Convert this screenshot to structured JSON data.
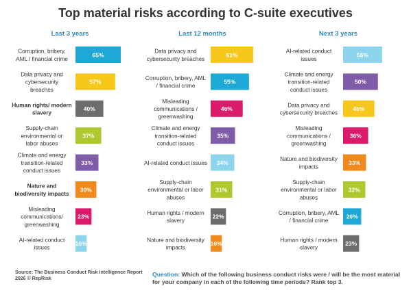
{
  "title": "Top material risks according to C-suite executives",
  "source": "Source: The Business Conduct Risk Intelligence Report 2026 © RepRisk",
  "question_label": "Question:",
  "question_text": "Which of the following business conduct risks were / will be the most material for your company in each of the following time periods? Rank top 3.",
  "colors": {
    "corruption": "#1da8d6",
    "data_privacy": "#f7c81b",
    "human_rights": "#6d6d6d",
    "supply_chain": "#b1c72f",
    "climate": "#7e5ca8",
    "nature": "#f08a1c",
    "misleading": "#db1a6c",
    "ai": "#8dd5ec",
    "heading": "#2b8ac4"
  },
  "chart_data": [
    {
      "type": "bar",
      "orientation": "horizontal",
      "title": "Last 3 years",
      "unit": "%",
      "xlim": [
        0,
        65
      ],
      "categories": [
        "Corruption, bribery, AML / financial crime",
        "Data privacy and cybersecurity breaches",
        "Human rights/ modern slavery",
        "Supply-chain environmental or labor abuses",
        "Climate and energy transition-related conduct issues",
        "Nature and biodiversity impacts",
        "Misleading communications/ greenwashing",
        "AI-related conduct issues"
      ],
      "label_lines": [
        [
          "Corruption, bribery,",
          "AML / financial crime"
        ],
        [
          "Data privacy and",
          "cybersecurity",
          "breaches"
        ],
        [
          "Human rights/ modern",
          "slavery"
        ],
        [
          "Supply-chain",
          "environmental or",
          "labor abuses"
        ],
        [
          "Climate and energy",
          "transition-related",
          "conduct issues"
        ],
        [
          "Nature and",
          "biodiversity impacts"
        ],
        [
          "Misleading",
          "communications/",
          "greenwashing"
        ],
        [
          "AI-related conduct",
          "issues"
        ]
      ],
      "bold_labels": [
        false,
        false,
        true,
        false,
        false,
        true,
        false,
        false
      ],
      "values": [
        65,
        57,
        40,
        37,
        33,
        30,
        23,
        16
      ],
      "color_keys": [
        "corruption",
        "data_privacy",
        "human_rights",
        "supply_chain",
        "climate",
        "nature",
        "misleading",
        "ai"
      ]
    },
    {
      "type": "bar",
      "orientation": "horizontal",
      "title": "Last 12 months",
      "unit": "%",
      "xlim": [
        0,
        65
      ],
      "categories": [
        "Data privacy and cybersecurity breaches",
        "Corruption, bribery, AML / financial crime",
        "Misleading communications / greenwashing",
        "Climate and energy transition-related conduct issues",
        "AI-related conduct issues",
        "Supply-chain environmental or labor abuses",
        "Human rights / modern slavery",
        "Nature and biodiversity impacts"
      ],
      "label_lines": [
        [
          "Data privacy and",
          "cybersecurity breaches"
        ],
        [
          "Corruption, bribery, AML",
          "/ financial crime"
        ],
        [
          "Misleading",
          "communications /",
          "greenwashing"
        ],
        [
          "Climate and energy",
          "transition-related",
          "conduct issues"
        ],
        [
          "AI-related conduct issues"
        ],
        [
          "Supply-chain",
          "environmental or labor",
          "abuses"
        ],
        [
          "Human rights / modern",
          "slavery"
        ],
        [
          "Nature and biodiversity",
          "impacts"
        ]
      ],
      "bold_labels": [
        false,
        false,
        false,
        false,
        false,
        false,
        false,
        false
      ],
      "values": [
        61,
        55,
        46,
        35,
        34,
        31,
        22,
        16
      ],
      "color_keys": [
        "data_privacy",
        "corruption",
        "misleading",
        "climate",
        "ai",
        "supply_chain",
        "human_rights",
        "nature"
      ]
    },
    {
      "type": "bar",
      "orientation": "horizontal",
      "title": "Next 3 years",
      "unit": "%",
      "xlim": [
        0,
        65
      ],
      "categories": [
        "AI-related conduct issues",
        "Climate and energy transition-related conduct issues",
        "Data privacy and cybersecurity breaches",
        "Misleading communications / greenwashing",
        "Nature and biodiversity impacts",
        "Supply-chain environmental or labor abuses",
        "Corruption, bribery, AML / financial crime",
        "Human rights / modern slavery"
      ],
      "label_lines": [
        [
          "AI-related conduct",
          "issues"
        ],
        [
          "Climate and energy",
          "transition-related",
          "conduct issues"
        ],
        [
          "Data privacy and",
          "cybersecurity breaches"
        ],
        [
          "Misleading",
          "communications /",
          "greenwashing"
        ],
        [
          "Nature and biodiversity",
          "impacts"
        ],
        [
          "Supply-chain",
          "environmental or labor",
          "abuses"
        ],
        [
          "Corruption, bribery, AML",
          "/ financial crime"
        ],
        [
          "Human rights / modern",
          "slavery"
        ]
      ],
      "bold_labels": [
        false,
        false,
        false,
        false,
        false,
        false,
        false,
        false
      ],
      "values": [
        56,
        50,
        45,
        36,
        33,
        32,
        26,
        23
      ],
      "color_keys": [
        "ai",
        "climate",
        "data_privacy",
        "misleading",
        "nature",
        "supply_chain",
        "corruption",
        "human_rights"
      ]
    }
  ]
}
